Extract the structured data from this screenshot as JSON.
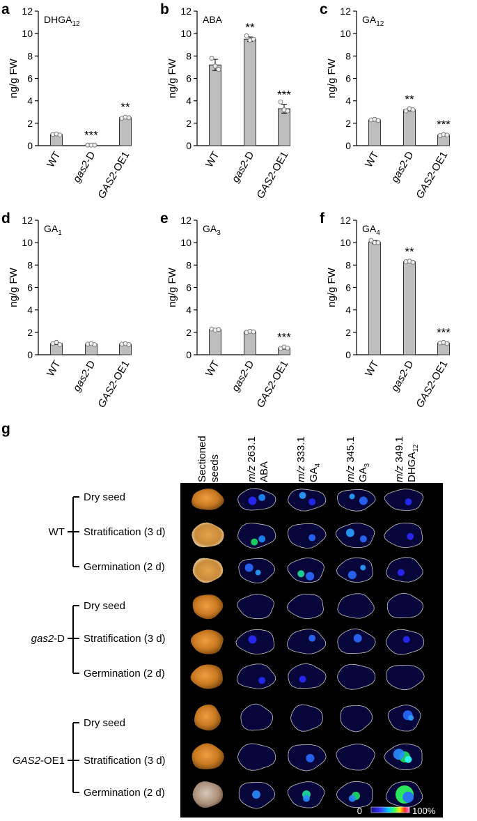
{
  "panel_g": {
    "letter": "g",
    "column_headers": [
      {
        "l1": "Sectioned",
        "l2": "seeds",
        "mz": "",
        "mzval": "",
        "sub": ""
      },
      {
        "l1": "",
        "l2": "",
        "mz": "m/z",
        "mzval": "263.1",
        "comp": "ABA",
        "sub": ""
      },
      {
        "l1": "",
        "l2": "",
        "mz": "m/z",
        "mzval": "333.1",
        "comp": "GA",
        "sub": "4"
      },
      {
        "l1": "",
        "l2": "",
        "mz": "m/z",
        "mzval": "345.1",
        "comp": "GA",
        "sub": "3"
      },
      {
        "l1": "",
        "l2": "",
        "mz": "m/z",
        "mzval": "349.1",
        "comp": "DHGA",
        "sub": "12"
      }
    ],
    "groups": [
      {
        "label": "WT",
        "italic": "",
        "rest": "WT"
      },
      {
        "label": "gas2-D",
        "italic": "gas2",
        "rest": "-D"
      },
      {
        "label": "GAS2-OE1",
        "italic": "GAS2",
        "rest": "-OE1"
      }
    ],
    "stages": [
      "Dry seed",
      "Stratification (3 d)",
      "Germination (2 d)"
    ],
    "scale": {
      "min": "0",
      "max": "100%"
    }
  },
  "chart_data": [
    {
      "panel": "a",
      "type": "bar",
      "title": "DHGA",
      "title_sub": "12",
      "categories": [
        "WT",
        "gas2-D",
        "GAS2-OE1"
      ],
      "category_italic": [
        "",
        "gas2",
        "GAS2"
      ],
      "category_rest": [
        "WT",
        "-D",
        "-OE1"
      ],
      "values": [
        1.0,
        0.05,
        2.5
      ],
      "errors": [
        0.1,
        0.05,
        0.1
      ],
      "points": [
        [
          1.0,
          1.05,
          0.95
        ],
        [
          0.05,
          0.05,
          0.05
        ],
        [
          2.45,
          2.55,
          2.5
        ]
      ],
      "significance": [
        "",
        "***",
        "**"
      ],
      "ylabel": "ng/g FW",
      "ylim": [
        0,
        12
      ],
      "yticks": [
        0,
        2,
        4,
        6,
        8,
        10,
        12
      ]
    },
    {
      "panel": "b",
      "type": "bar",
      "title": "ABA",
      "title_sub": "",
      "categories": [
        "WT",
        "gas2-D",
        "GAS2-OE1"
      ],
      "category_italic": [
        "",
        "gas2",
        "GAS2"
      ],
      "category_rest": [
        "WT",
        "-D",
        "-OE1"
      ],
      "values": [
        7.2,
        9.5,
        3.3
      ],
      "errors": [
        0.5,
        0.2,
        0.4
      ],
      "points": [
        [
          7.8,
          7.1,
          6.8
        ],
        [
          9.8,
          9.4,
          9.5
        ],
        [
          3.9,
          3.2,
          3.1
        ]
      ],
      "significance": [
        "",
        "**",
        "***"
      ],
      "ylabel": "ng/g FW",
      "ylim": [
        0,
        12
      ],
      "yticks": [
        0,
        2,
        4,
        6,
        8,
        10,
        12
      ]
    },
    {
      "panel": "c",
      "type": "bar",
      "title": "GA",
      "title_sub": "12",
      "categories": [
        "WT",
        "gas2-D",
        "GAS2-OE1"
      ],
      "category_italic": [
        "",
        "gas2",
        "GAS2"
      ],
      "category_rest": [
        "WT",
        "-D",
        "-OE1"
      ],
      "values": [
        2.3,
        3.2,
        0.95
      ],
      "errors": [
        0.1,
        0.1,
        0.1
      ],
      "points": [
        [
          2.3,
          2.35,
          2.25
        ],
        [
          3.1,
          3.3,
          3.2
        ],
        [
          0.9,
          1.0,
          0.95
        ]
      ],
      "significance": [
        "",
        "**",
        "***"
      ],
      "ylabel": "ng/g FW",
      "ylim": [
        0,
        12
      ],
      "yticks": [
        0,
        2,
        4,
        6,
        8,
        10,
        12
      ]
    },
    {
      "panel": "d",
      "type": "bar",
      "title": "GA",
      "title_sub": "1",
      "categories": [
        "WT",
        "gas2-D",
        "GAS2-OE1"
      ],
      "category_italic": [
        "",
        "gas2",
        "GAS2"
      ],
      "category_rest": [
        "WT",
        "-D",
        "-OE1"
      ],
      "values": [
        1.0,
        0.95,
        0.95
      ],
      "errors": [
        0.1,
        0.05,
        0.05
      ],
      "points": [
        [
          1.0,
          1.1,
          0.9
        ],
        [
          0.95,
          1.0,
          0.9
        ],
        [
          0.95,
          1.0,
          0.9
        ]
      ],
      "significance": [
        "",
        "",
        ""
      ],
      "ylabel": "ng/g FW",
      "ylim": [
        0,
        12
      ],
      "yticks": [
        0,
        2,
        4,
        6,
        8,
        10,
        12
      ]
    },
    {
      "panel": "e",
      "type": "bar",
      "title": "GA",
      "title_sub": "3",
      "categories": [
        "WT",
        "gas2-D",
        "GAS2-OE1"
      ],
      "category_italic": [
        "",
        "gas2",
        "GAS2"
      ],
      "category_rest": [
        "WT",
        "-D",
        "-OE1"
      ],
      "values": [
        2.25,
        2.05,
        0.6
      ],
      "errors": [
        0.1,
        0.1,
        0.1
      ],
      "points": [
        [
          2.3,
          2.2,
          2.25
        ],
        [
          2.0,
          2.1,
          2.05
        ],
        [
          0.55,
          0.7,
          0.6
        ]
      ],
      "significance": [
        "",
        "",
        "***"
      ],
      "ylabel": "ng/g FW",
      "ylim": [
        0,
        12
      ],
      "yticks": [
        0,
        2,
        4,
        6,
        8,
        10,
        12
      ]
    },
    {
      "panel": "f",
      "type": "bar",
      "title": "GA",
      "title_sub": "4",
      "categories": [
        "WT",
        "gas2-D",
        "GAS2-OE1"
      ],
      "category_italic": [
        "",
        "gas2",
        "GAS2"
      ],
      "category_rest": [
        "WT",
        "-D",
        "-OE1"
      ],
      "values": [
        10.05,
        8.3,
        1.05
      ],
      "errors": [
        0.15,
        0.05,
        0.1
      ],
      "points": [
        [
          10.2,
          10.0,
          10.0
        ],
        [
          8.3,
          8.35,
          8.25
        ],
        [
          1.05,
          1.1,
          1.0
        ]
      ],
      "significance": [
        "",
        "**",
        "***"
      ],
      "ylabel": "ng/g FW",
      "ylim": [
        0,
        12
      ],
      "yticks": [
        0,
        2,
        4,
        6,
        8,
        10,
        12
      ]
    }
  ]
}
